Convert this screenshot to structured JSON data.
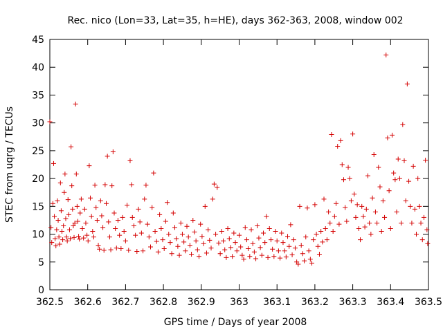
{
  "chart_data": {
    "type": "scatter",
    "title": "Rec. nico (Lon=33, Lat=35, h=HE), days 362-363, 2008, window 002",
    "xlabel": "GPS time / Days of year 2008",
    "ylabel": "STEC from uqrg / TECUs",
    "xlim": [
      362.5,
      363.5
    ],
    "ylim": [
      0,
      45
    ],
    "xticks": [
      "362.5",
      "362.6",
      "362.7",
      "362.8",
      "362.9",
      "363",
      "363.1",
      "363.2",
      "363.3",
      "363.4",
      "363.5"
    ],
    "yticks": [
      "0",
      "5",
      "10",
      "15",
      "20",
      "25",
      "30",
      "35",
      "40",
      "45"
    ],
    "grid": false,
    "marker": "plus",
    "color": "#d40000",
    "points": [
      [
        362.5,
        30.2
      ],
      [
        362.503,
        11.2
      ],
      [
        362.505,
        8.5
      ],
      [
        362.508,
        15.5
      ],
      [
        362.51,
        22.7
      ],
      [
        362.512,
        13.2
      ],
      [
        362.514,
        9.2
      ],
      [
        362.516,
        7.9
      ],
      [
        362.518,
        10.8
      ],
      [
        362.52,
        16.0
      ],
      [
        362.522,
        12.5
      ],
      [
        362.524,
        9.5
      ],
      [
        362.526,
        8.2
      ],
      [
        362.528,
        19.2
      ],
      [
        362.53,
        14.2
      ],
      [
        362.532,
        10.5
      ],
      [
        362.534,
        9.0
      ],
      [
        362.536,
        11.5
      ],
      [
        362.538,
        17.5
      ],
      [
        362.54,
        20.8
      ],
      [
        362.542,
        12.8
      ],
      [
        362.544,
        9.5
      ],
      [
        362.546,
        8.8
      ],
      [
        362.548,
        16.2
      ],
      [
        362.55,
        13.5
      ],
      [
        362.552,
        10.8
      ],
      [
        362.554,
        9.2
      ],
      [
        362.556,
        25.7
      ],
      [
        362.558,
        18.7
      ],
      [
        362.56,
        14.5
      ],
      [
        362.562,
        11.5
      ],
      [
        362.564,
        9.4
      ],
      [
        362.566,
        12.0
      ],
      [
        362.568,
        33.4
      ],
      [
        362.57,
        20.8
      ],
      [
        362.572,
        15.0
      ],
      [
        362.574,
        12.3
      ],
      [
        362.576,
        9.6
      ],
      [
        362.578,
        9.1
      ],
      [
        362.58,
        13.8
      ],
      [
        362.583,
        16.3
      ],
      [
        362.586,
        11.0
      ],
      [
        362.589,
        9.3
      ],
      [
        362.592,
        14.5
      ],
      [
        362.595,
        12.0
      ],
      [
        362.598,
        9.8
      ],
      [
        362.601,
        8.8
      ],
      [
        362.604,
        22.3
      ],
      [
        362.607,
        16.5
      ],
      [
        362.61,
        13.2
      ],
      [
        362.613,
        10.5
      ],
      [
        362.616,
        9.5
      ],
      [
        362.619,
        18.8
      ],
      [
        362.622,
        14.8
      ],
      [
        362.625,
        12.5
      ],
      [
        362.628,
        8.0
      ],
      [
        362.631,
        7.3
      ],
      [
        362.634,
        16.0
      ],
      [
        362.637,
        13.3
      ],
      [
        362.64,
        11.2
      ],
      [
        362.643,
        7.1
      ],
      [
        362.646,
        18.9
      ],
      [
        362.649,
        15.5
      ],
      [
        362.652,
        24.0
      ],
      [
        362.655,
        12.2
      ],
      [
        362.658,
        9.5
      ],
      [
        362.661,
        7.2
      ],
      [
        362.664,
        18.7
      ],
      [
        362.667,
        24.8
      ],
      [
        362.67,
        13.8
      ],
      [
        362.673,
        11.0
      ],
      [
        362.676,
        7.5
      ],
      [
        362.68,
        12.5
      ],
      [
        362.684,
        9.8
      ],
      [
        362.688,
        7.4
      ],
      [
        362.692,
        13.0
      ],
      [
        362.696,
        10.5
      ],
      [
        362.7,
        8.8
      ],
      [
        362.704,
        15.2
      ],
      [
        362.708,
        7.1
      ],
      [
        362.712,
        23.2
      ],
      [
        362.716,
        18.9
      ],
      [
        362.718,
        13.0
      ],
      [
        362.722,
        11.5
      ],
      [
        362.726,
        9.8
      ],
      [
        362.73,
        6.9
      ],
      [
        362.734,
        14.5
      ],
      [
        362.738,
        12.2
      ],
      [
        362.742,
        10.2
      ],
      [
        362.746,
        7.0
      ],
      [
        362.75,
        16.3
      ],
      [
        362.754,
        18.8
      ],
      [
        362.758,
        11.8
      ],
      [
        362.762,
        9.5
      ],
      [
        362.766,
        7.7
      ],
      [
        362.77,
        14.8
      ],
      [
        362.774,
        21.0
      ],
      [
        362.778,
        10.5
      ],
      [
        362.782,
        8.7
      ],
      [
        362.786,
        6.8
      ],
      [
        362.79,
        13.5
      ],
      [
        362.794,
        11.0
      ],
      [
        362.798,
        9.0
      ],
      [
        362.802,
        7.4
      ],
      [
        362.806,
        12.3
      ],
      [
        362.81,
        15.7
      ],
      [
        362.814,
        10.0
      ],
      [
        362.818,
        8.5
      ],
      [
        362.822,
        6.5
      ],
      [
        362.826,
        13.8
      ],
      [
        362.83,
        11.2
      ],
      [
        362.834,
        9.2
      ],
      [
        362.838,
        7.8
      ],
      [
        362.842,
        6.2
      ],
      [
        362.846,
        12.0
      ],
      [
        362.85,
        10.0
      ],
      [
        362.854,
        8.6
      ],
      [
        362.858,
        7.0
      ],
      [
        362.862,
        11.4
      ],
      [
        362.866,
        9.5
      ],
      [
        362.87,
        8.0
      ],
      [
        362.874,
        6.4
      ],
      [
        362.878,
        12.5
      ],
      [
        362.882,
        10.4
      ],
      [
        362.886,
        8.8
      ],
      [
        362.89,
        7.2
      ],
      [
        362.894,
        6.0
      ],
      [
        362.898,
        11.8
      ],
      [
        362.902,
        9.6
      ],
      [
        362.906,
        8.3
      ],
      [
        362.91,
        15.0
      ],
      [
        362.914,
        6.6
      ],
      [
        362.918,
        10.8
      ],
      [
        362.922,
        8.9
      ],
      [
        362.926,
        7.5
      ],
      [
        362.93,
        16.3
      ],
      [
        362.934,
        19.0
      ],
      [
        362.938,
        10.0
      ],
      [
        362.942,
        18.4
      ],
      [
        362.946,
        8.4
      ],
      [
        362.95,
        6.5
      ],
      [
        362.954,
        10.5
      ],
      [
        362.958,
        8.8
      ],
      [
        362.962,
        7.2
      ],
      [
        362.966,
        5.8
      ],
      [
        362.97,
        11.0
      ],
      [
        362.974,
        9.2
      ],
      [
        362.978,
        7.6
      ],
      [
        362.982,
        6.0
      ],
      [
        362.986,
        10.2
      ],
      [
        362.99,
        8.5
      ],
      [
        362.994,
        7.0
      ],
      [
        363.0,
        9.8
      ],
      [
        363.004,
        7.7
      ],
      [
        363.008,
        6.2
      ],
      [
        363.012,
        5.5
      ],
      [
        363.016,
        11.2
      ],
      [
        363.02,
        9.0
      ],
      [
        363.024,
        7.4
      ],
      [
        363.028,
        6.0
      ],
      [
        363.032,
        10.8
      ],
      [
        363.036,
        8.3
      ],
      [
        363.04,
        6.8
      ],
      [
        363.044,
        5.6
      ],
      [
        363.048,
        11.5
      ],
      [
        363.052,
        9.3
      ],
      [
        363.056,
        7.6
      ],
      [
        363.06,
        6.2
      ],
      [
        363.064,
        10.2
      ],
      [
        363.068,
        8.5
      ],
      [
        363.072,
        13.2
      ],
      [
        363.076,
        5.8
      ],
      [
        363.08,
        11.0
      ],
      [
        363.084,
        9.0
      ],
      [
        363.088,
        7.3
      ],
      [
        363.092,
        6.0
      ],
      [
        363.096,
        10.5
      ],
      [
        363.1,
        8.8
      ],
      [
        363.104,
        7.0
      ],
      [
        363.108,
        5.7
      ],
      [
        363.112,
        10.2
      ],
      [
        363.116,
        8.5
      ],
      [
        363.12,
        7.0
      ],
      [
        363.124,
        5.9
      ],
      [
        363.128,
        9.6
      ],
      [
        363.132,
        7.8
      ],
      [
        363.136,
        11.7
      ],
      [
        363.14,
        6.3
      ],
      [
        363.144,
        9.0
      ],
      [
        363.148,
        7.5
      ],
      [
        363.152,
        5.0
      ],
      [
        363.156,
        4.6
      ],
      [
        363.16,
        15.0
      ],
      [
        363.164,
        8.0
      ],
      [
        363.168,
        6.5
      ],
      [
        363.172,
        5.2
      ],
      [
        363.176,
        9.5
      ],
      [
        363.18,
        14.7
      ],
      [
        363.184,
        7.0
      ],
      [
        363.188,
        5.5
      ],
      [
        363.192,
        4.8
      ],
      [
        363.196,
        9.0
      ],
      [
        363.2,
        15.3
      ],
      [
        363.204,
        10.0
      ],
      [
        363.208,
        7.8
      ],
      [
        363.212,
        6.4
      ],
      [
        363.216,
        10.5
      ],
      [
        363.22,
        8.6
      ],
      [
        363.224,
        16.3
      ],
      [
        363.228,
        11.0
      ],
      [
        363.232,
        9.0
      ],
      [
        363.236,
        14.0
      ],
      [
        363.24,
        12.0
      ],
      [
        363.244,
        27.9
      ],
      [
        363.248,
        10.5
      ],
      [
        363.252,
        13.2
      ],
      [
        363.256,
        15.5
      ],
      [
        363.26,
        25.8
      ],
      [
        363.264,
        11.8
      ],
      [
        363.268,
        26.8
      ],
      [
        363.272,
        22.5
      ],
      [
        363.276,
        19.8
      ],
      [
        363.28,
        14.8
      ],
      [
        363.284,
        12.3
      ],
      [
        363.288,
        22.0
      ],
      [
        363.292,
        20.0
      ],
      [
        363.296,
        16.0
      ],
      [
        363.3,
        28.0
      ],
      [
        363.304,
        17.2
      ],
      [
        363.308,
        13.0
      ],
      [
        363.312,
        15.3
      ],
      [
        363.316,
        11.0
      ],
      [
        363.32,
        9.0
      ],
      [
        363.324,
        15.0
      ],
      [
        363.328,
        13.2
      ],
      [
        363.332,
        11.3
      ],
      [
        363.336,
        14.5
      ],
      [
        363.34,
        20.5
      ],
      [
        363.344,
        12.0
      ],
      [
        363.348,
        10.0
      ],
      [
        363.352,
        16.5
      ],
      [
        363.356,
        24.3
      ],
      [
        363.36,
        14.0
      ],
      [
        363.364,
        12.0
      ],
      [
        363.368,
        22.0
      ],
      [
        363.372,
        18.5
      ],
      [
        363.376,
        10.5
      ],
      [
        363.38,
        16.0
      ],
      [
        363.384,
        13.0
      ],
      [
        363.388,
        42.2
      ],
      [
        363.392,
        27.3
      ],
      [
        363.396,
        17.8
      ],
      [
        363.4,
        11.0
      ],
      [
        363.404,
        27.8
      ],
      [
        363.408,
        21.0
      ],
      [
        363.412,
        19.8
      ],
      [
        363.416,
        14.0
      ],
      [
        363.42,
        23.5
      ],
      [
        363.424,
        20.0
      ],
      [
        363.428,
        12.0
      ],
      [
        363.432,
        29.7
      ],
      [
        363.436,
        23.2
      ],
      [
        363.44,
        16.0
      ],
      [
        363.444,
        37.0
      ],
      [
        363.448,
        19.5
      ],
      [
        363.452,
        15.0
      ],
      [
        363.456,
        12.0
      ],
      [
        363.46,
        22.2
      ],
      [
        363.464,
        14.5
      ],
      [
        363.468,
        10.0
      ],
      [
        363.472,
        20.0
      ],
      [
        363.476,
        15.0
      ],
      [
        363.48,
        12.0
      ],
      [
        363.484,
        9.0
      ],
      [
        363.488,
        13.0
      ],
      [
        363.492,
        23.3
      ],
      [
        363.496,
        10.8
      ],
      [
        363.498,
        8.3
      ]
    ]
  }
}
